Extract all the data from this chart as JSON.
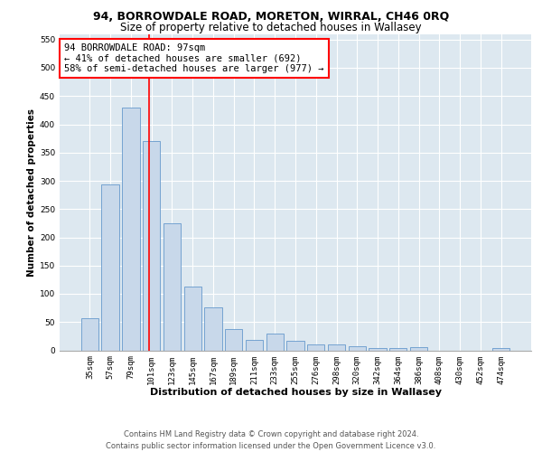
{
  "title1": "94, BORROWDALE ROAD, MORETON, WIRRAL, CH46 0RQ",
  "title2": "Size of property relative to detached houses in Wallasey",
  "xlabel": "Distribution of detached houses by size in Wallasey",
  "ylabel": "Number of detached properties",
  "bar_labels": [
    "35sqm",
    "57sqm",
    "79sqm",
    "101sqm",
    "123sqm",
    "145sqm",
    "167sqm",
    "189sqm",
    "211sqm",
    "233sqm",
    "255sqm",
    "276sqm",
    "298sqm",
    "320sqm",
    "342sqm",
    "364sqm",
    "386sqm",
    "408sqm",
    "430sqm",
    "452sqm",
    "474sqm"
  ],
  "bar_values": [
    57,
    293,
    430,
    370,
    225,
    113,
    76,
    38,
    18,
    29,
    17,
    10,
    10,
    7,
    4,
    4,
    5,
    0,
    0,
    0,
    4
  ],
  "bar_color": "#c8d8ea",
  "bar_edge_color": "#6699cc",
  "annotation_text": "94 BORROWDALE ROAD: 97sqm\n← 41% of detached houses are smaller (692)\n58% of semi-detached houses are larger (977) →",
  "annotation_box_color": "white",
  "annotation_box_edge_color": "red",
  "vline_color": "red",
  "vline_x": 2.9,
  "ylim": [
    0,
    560
  ],
  "yticks": [
    0,
    50,
    100,
    150,
    200,
    250,
    300,
    350,
    400,
    450,
    500,
    550
  ],
  "footer_line1": "Contains HM Land Registry data © Crown copyright and database right 2024.",
  "footer_line2": "Contains public sector information licensed under the Open Government Licence v3.0.",
  "plot_bg_color": "#dde8f0",
  "title1_fontsize": 9,
  "title2_fontsize": 8.5,
  "xlabel_fontsize": 8,
  "ylabel_fontsize": 7.5,
  "tick_fontsize": 6.5,
  "annotation_fontsize": 7.5,
  "footer_fontsize": 6
}
